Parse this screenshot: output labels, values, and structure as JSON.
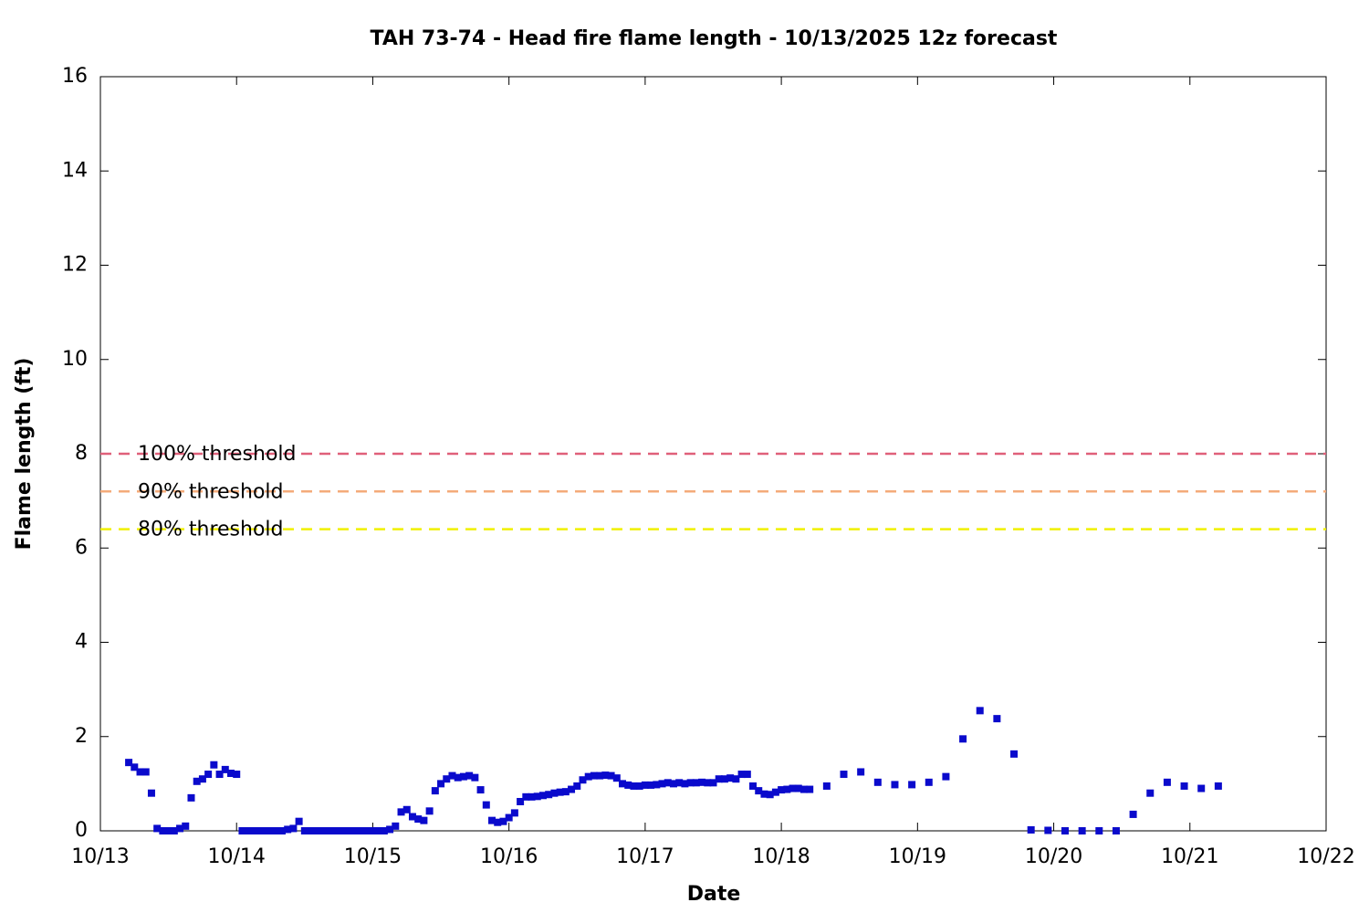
{
  "chart_data": {
    "type": "scatter",
    "title": "TAH 73-74 - Head fire flame length - 10/13/2025 12z forecast",
    "x_label": "Date",
    "y_label": "Flame length (ft)",
    "xlim": [
      0,
      216
    ],
    "ylim": [
      0,
      16
    ],
    "xticks": [
      {
        "value": 0,
        "label": "10/13"
      },
      {
        "value": 24,
        "label": "10/14"
      },
      {
        "value": 48,
        "label": "10/15"
      },
      {
        "value": 72,
        "label": "10/16"
      },
      {
        "value": 96,
        "label": "10/17"
      },
      {
        "value": 120,
        "label": "10/18"
      },
      {
        "value": 144,
        "label": "10/19"
      },
      {
        "value": 168,
        "label": "10/20"
      },
      {
        "value": 192,
        "label": "10/21"
      },
      {
        "value": 216,
        "label": "10/22"
      }
    ],
    "yticks": [
      0,
      2,
      4,
      6,
      8,
      10,
      12,
      14,
      16
    ],
    "thresholds": [
      {
        "label": "100% threshold",
        "value": 8,
        "color": "#e0607a"
      },
      {
        "label": "90% threshold",
        "value": 7.2,
        "color": "#f4ab7a"
      },
      {
        "label": "80% threshold",
        "value": 6.4,
        "color": "#f0f000"
      }
    ],
    "series": [
      {
        "color": "#0a0acc",
        "x": [
          5,
          6,
          7,
          8,
          9,
          10,
          11,
          12,
          13,
          14,
          15,
          16,
          17,
          18,
          19,
          20,
          21,
          22,
          23,
          24,
          25,
          26,
          27,
          28,
          29,
          30,
          31,
          32,
          33,
          34,
          35,
          36,
          37,
          38,
          39,
          40,
          41,
          42,
          43,
          44,
          45,
          46,
          47,
          48,
          49,
          50,
          51,
          52,
          53,
          54,
          55,
          56,
          57,
          58,
          59,
          60,
          61,
          62,
          63,
          64,
          65,
          66,
          67,
          68,
          69,
          70,
          71,
          72,
          73,
          74,
          75,
          76,
          77,
          78,
          79,
          80,
          81,
          82,
          83,
          84,
          85,
          86,
          87,
          88,
          89,
          90,
          91,
          92,
          93,
          94,
          95,
          96,
          97,
          98,
          99,
          100,
          101,
          102,
          103,
          104,
          105,
          106,
          107,
          108,
          109,
          110,
          111,
          112,
          113,
          114,
          115,
          116,
          117,
          118,
          119,
          120,
          121,
          122,
          123,
          124,
          125,
          128,
          131,
          134,
          137,
          140,
          143,
          146,
          149,
          152,
          155,
          158,
          161,
          164,
          167,
          170,
          173,
          176,
          179,
          182,
          185,
          188,
          191,
          194,
          197
        ],
        "values": [
          1.45,
          1.35,
          1.25,
          1.25,
          0.8,
          0.05,
          0,
          0,
          0,
          0.05,
          0.1,
          0.7,
          1.05,
          1.1,
          1.2,
          1.4,
          1.2,
          1.3,
          1.22,
          1.2,
          0,
          0,
          0,
          0,
          0,
          0,
          0,
          0,
          0.03,
          0.05,
          0.2,
          0,
          0,
          0,
          0,
          0,
          0,
          0,
          0,
          0,
          0,
          0,
          0,
          0,
          0,
          0,
          0.03,
          0.1,
          0.4,
          0.45,
          0.3,
          0.25,
          0.22,
          0.42,
          0.85,
          1.0,
          1.1,
          1.17,
          1.13,
          1.15,
          1.17,
          1.13,
          0.87,
          0.55,
          0.22,
          0.18,
          0.2,
          0.28,
          0.38,
          0.62,
          0.72,
          0.72,
          0.73,
          0.75,
          0.77,
          0.8,
          0.82,
          0.83,
          0.88,
          0.95,
          1.08,
          1.15,
          1.17,
          1.17,
          1.18,
          1.17,
          1.12,
          1.0,
          0.97,
          0.95,
          0.95,
          0.97,
          0.97,
          0.98,
          1.0,
          1.02,
          1.0,
          1.02,
          1.0,
          1.02,
          1.02,
          1.03,
          1.02,
          1.02,
          1.1,
          1.1,
          1.12,
          1.1,
          1.2,
          1.2,
          0.95,
          0.85,
          0.78,
          0.77,
          0.82,
          0.87,
          0.88,
          0.9,
          0.9,
          0.88,
          0.88,
          0.95,
          1.2,
          1.25,
          1.03,
          0.98,
          0.98,
          1.03,
          1.15,
          1.95,
          2.55,
          2.38,
          1.63,
          0.02,
          0.01,
          0,
          0,
          0,
          0,
          0.35,
          0.8,
          1.03,
          0.95,
          0.9,
          0.95
        ]
      }
    ]
  }
}
